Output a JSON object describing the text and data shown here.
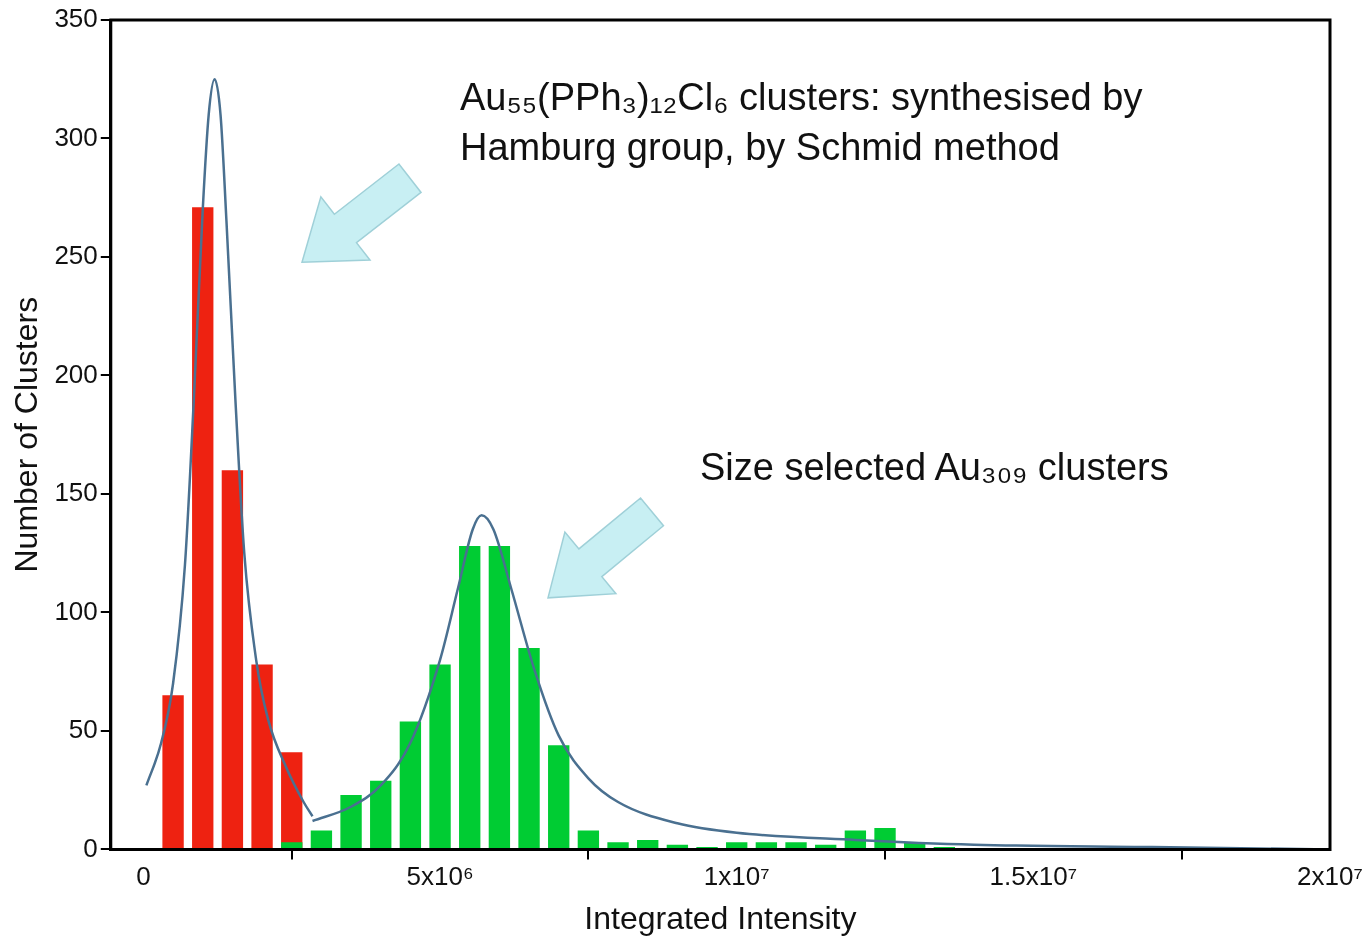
{
  "chart_data": {
    "type": "histogram",
    "xlabel": "Integrated Intensity",
    "ylabel": "Number of Clusters",
    "bins": [
      250000,
      750000,
      1250000,
      1750000,
      2250000,
      2750000,
      3250000,
      3750000,
      4250000,
      4750000,
      5250000,
      5750000,
      6250000,
      6750000,
      7250000,
      7750000,
      8250000,
      8750000,
      9250000,
      9750000,
      10250000,
      10750000,
      11250000,
      11750000,
      12250000,
      12750000,
      13250000,
      13750000
    ],
    "series": [
      {
        "color": "#ee2211",
        "values": [
          65,
          271,
          160,
          78,
          41,
          null,
          null,
          null,
          null,
          null,
          null,
          null,
          null,
          null,
          null,
          null,
          null,
          null,
          null,
          null,
          null,
          null,
          null,
          null,
          null,
          null,
          null
        ]
      },
      {
        "color": "#00cc33",
        "values": [
          null,
          null,
          null,
          null,
          3,
          8,
          23,
          29,
          54,
          78,
          128,
          128,
          85,
          44,
          8,
          3,
          4,
          2,
          1,
          3,
          3,
          3,
          2,
          8,
          9,
          3,
          1
        ]
      },
      {
        "type": "line",
        "color": "#4a7090",
        "x": [
          50000,
          300000,
          500000,
          700000,
          850000,
          1000000,
          1100000,
          1200000,
          1300000,
          1400000,
          1550000,
          1700000,
          1900000,
          2100000,
          2400000,
          2700000,
          2850000
        ],
        "values": [
          27,
          45,
          70,
          120,
          190,
          270,
          310,
          325,
          310,
          265,
          190,
          125,
          80,
          55,
          35,
          20,
          14
        ]
      },
      {
        "type": "line",
        "color": "#4a7090",
        "x": [
          2850000,
          3500000,
          4000000,
          4500000,
          5000000,
          5300000,
          5550000,
          5700000,
          5900000,
          6200000,
          6600000,
          7000000,
          7500000,
          8000000,
          9000000,
          10000000,
          12000000,
          14000000,
          17000000,
          20000000
        ],
        "values": [
          12,
          18,
          27,
          45,
          80,
          110,
          135,
          141,
          135,
          110,
          75,
          48,
          30,
          20,
          11,
          7,
          4,
          2,
          1,
          0
        ]
      }
    ],
    "xlim": [
      -550000,
      20000000
    ],
    "xticks": [
      0,
      {
        "value": 5000000,
        "label": "5x10⁶"
      },
      {
        "value": 10000000,
        "label": "1x10⁷"
      },
      {
        "value": 15000000,
        "label": "1.5x10⁷"
      },
      {
        "value": 20000000,
        "label": "2x10⁷"
      }
    ],
    "ylim": [
      0,
      350
    ],
    "yticks": [
      0,
      50,
      100,
      150,
      200,
      250,
      300,
      350
    ],
    "grid": false,
    "legend": false,
    "annotations": [
      "Au₅₅(PPh₃)₁₂Cl₆ clusters: synthesised by Hamburg group, by Schmid method",
      "Size selected Au₃₀₉ clusters"
    ]
  }
}
